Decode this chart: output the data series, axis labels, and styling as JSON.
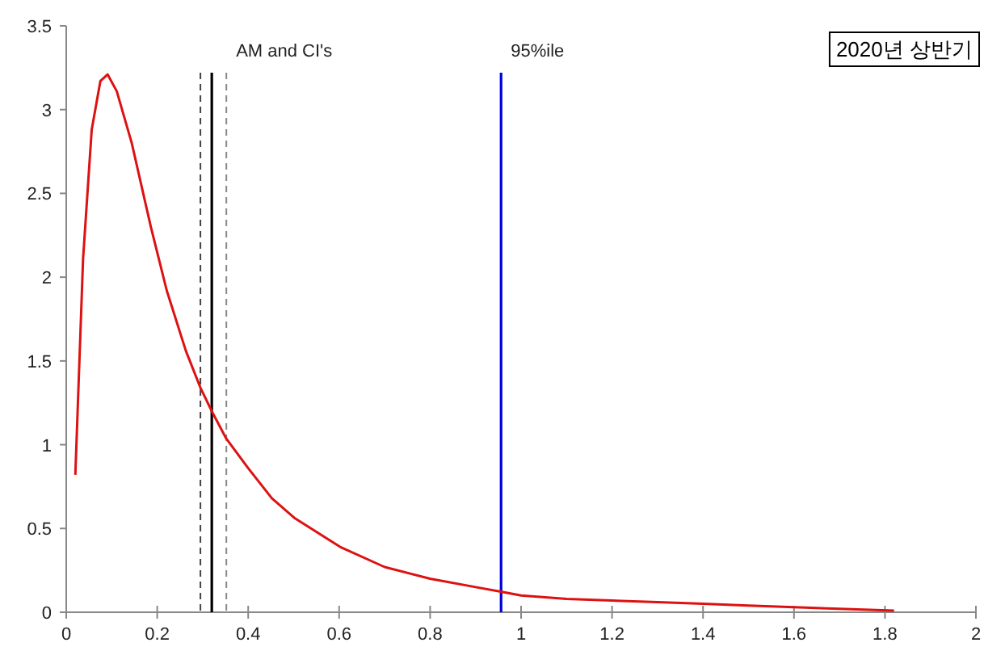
{
  "chart_data": {
    "type": "line",
    "title": "2020년 상반기",
    "x": [
      0.02,
      0.037,
      0.056,
      0.075,
      0.091,
      0.111,
      0.144,
      0.186,
      0.221,
      0.263,
      0.295,
      0.32,
      0.351,
      0.4,
      0.452,
      0.503,
      0.602,
      0.7,
      0.8,
      0.9,
      0.96,
      1.0,
      1.1,
      1.2,
      1.3,
      1.4,
      1.5,
      1.6,
      1.7,
      1.82
    ],
    "series": [
      {
        "color": "#dd1111",
        "values": [
          0.82,
          2.11,
          2.88,
          3.17,
          3.21,
          3.11,
          2.8,
          2.3,
          1.92,
          1.56,
          1.34,
          1.2,
          1.04,
          0.86,
          0.68,
          0.56,
          0.39,
          0.27,
          0.2,
          0.15,
          0.12,
          0.1,
          0.08,
          0.07,
          0.06,
          0.05,
          0.04,
          0.03,
          0.02,
          0.01
        ]
      }
    ],
    "xlim": [
      0,
      2
    ],
    "ylim": [
      0,
      3.5
    ],
    "xticks": [
      0,
      0.2,
      0.4,
      0.6,
      0.8,
      1,
      1.2,
      1.4,
      1.6,
      1.8,
      2
    ],
    "yticks": [
      0,
      0.5,
      1,
      1.5,
      2,
      2.5,
      3,
      3.5
    ],
    "ref_lines": [
      {
        "axis": "x",
        "value": 0.295,
        "color": "#444444",
        "line_style": "dashed"
      },
      {
        "axis": "x",
        "value": 0.32,
        "color": "#000000",
        "line_style": "solid"
      },
      {
        "axis": "x",
        "value": 0.352,
        "color": "#888888",
        "line_style": "dashed",
        "label": "AM and CI's"
      },
      {
        "axis": "x",
        "value": 0.956,
        "color": "#0000dd",
        "line_style": "solid",
        "label": "95%ile"
      }
    ],
    "grid": false
  }
}
